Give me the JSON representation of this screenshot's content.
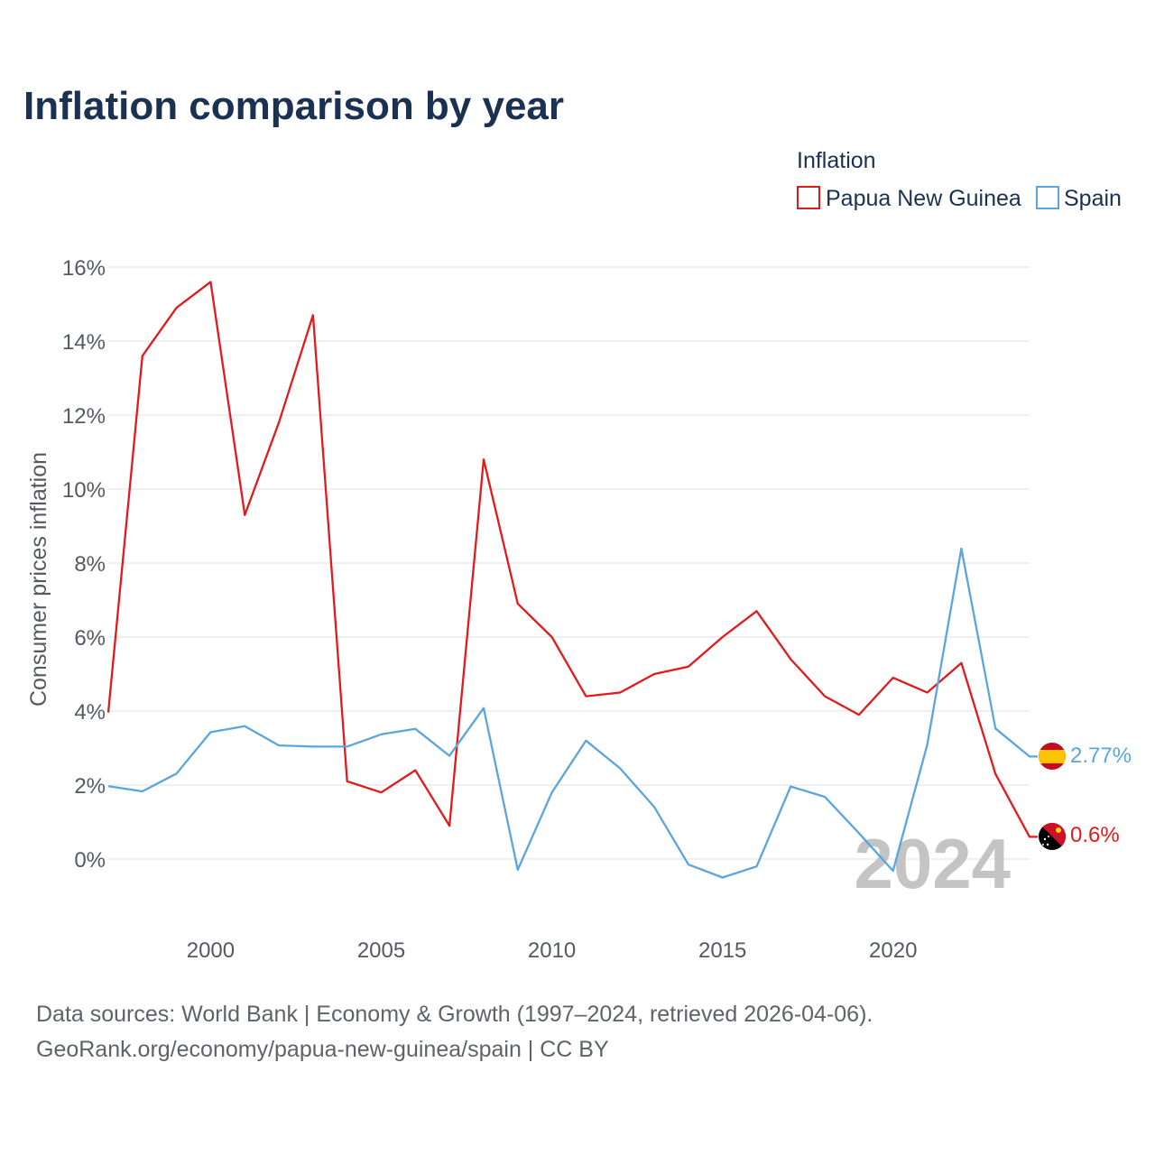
{
  "title": "Inflation comparison by year",
  "legend": {
    "title": "Inflation",
    "items": [
      {
        "name": "Papua New Guinea",
        "color": "#e31a1c"
      },
      {
        "name": "Spain",
        "color": "#5aa5e0"
      }
    ]
  },
  "watermark_year": "2024",
  "end_labels": {
    "spain": {
      "text": "2.77%",
      "flag_icon": "spain-flag-icon"
    },
    "png": {
      "text": "0.6%",
      "flag_icon": "papua-new-guinea-flag-icon"
    }
  },
  "source_line1": "Data sources: World Bank | Economy & Growth (1997–2024, retrieved 2026-04-06).",
  "source_line2": "GeoRank.org/economy/papua-new-guinea/spain | CC BY",
  "chart_data": {
    "type": "line",
    "title": "Inflation comparison by year",
    "xlabel": "",
    "ylabel": "Consumer prices inflation",
    "x": [
      1997,
      1998,
      1999,
      2000,
      2001,
      2002,
      2003,
      2004,
      2005,
      2006,
      2007,
      2008,
      2009,
      2010,
      2011,
      2012,
      2013,
      2014,
      2015,
      2016,
      2017,
      2018,
      2019,
      2020,
      2021,
      2022,
      2023,
      2024
    ],
    "xlim": [
      1997,
      2024
    ],
    "ylim": [
      -1.2,
      16
    ],
    "xticks": [
      2000,
      2005,
      2010,
      2015,
      2020
    ],
    "yticks": [
      0,
      2,
      4,
      6,
      8,
      10,
      12,
      14,
      16
    ],
    "ytick_labels": [
      "0%",
      "2%",
      "4%",
      "6%",
      "8%",
      "10%",
      "12%",
      "14%",
      "16%"
    ],
    "grid": true,
    "legend_position": "top-right",
    "series": [
      {
        "name": "Papua New Guinea",
        "color": "#e31a1c",
        "values": [
          3.96,
          13.6,
          14.9,
          15.6,
          9.3,
          11.8,
          14.7,
          2.1,
          1.8,
          2.4,
          0.9,
          10.8,
          6.9,
          6.0,
          4.4,
          4.5,
          5.0,
          5.2,
          6.0,
          6.7,
          5.4,
          4.4,
          3.9,
          4.9,
          4.5,
          5.3,
          2.3,
          0.6
        ]
      },
      {
        "name": "Spain",
        "color": "#5aa5e0",
        "values": [
          1.97,
          1.83,
          2.31,
          3.43,
          3.59,
          3.07,
          3.04,
          3.04,
          3.37,
          3.52,
          2.79,
          4.08,
          -0.29,
          1.8,
          3.2,
          2.45,
          1.41,
          -0.15,
          -0.5,
          -0.2,
          1.96,
          1.68,
          0.7,
          -0.32,
          3.09,
          8.39,
          3.53,
          2.77
        ]
      }
    ]
  }
}
